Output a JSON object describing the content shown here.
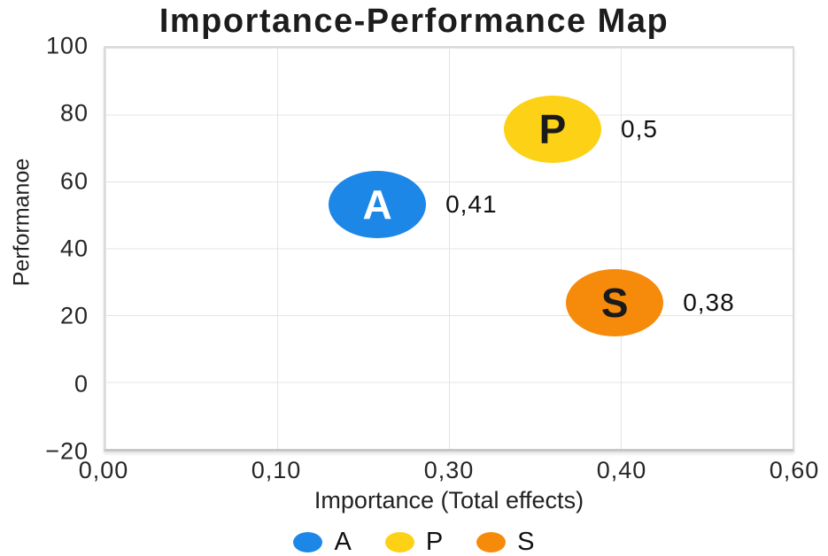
{
  "chart_data": {
    "type": "scatter",
    "subtype": "bubble-ipma",
    "title": "Importance-Performance Map",
    "xlabel": "Importance (Total effects)",
    "ylabel": "Performanoe",
    "x_ticks": {
      "labels": [
        "0,00",
        "0,10",
        "0,30",
        "0,40",
        "0,60"
      ],
      "values": [
        0.0,
        0.1,
        0.3,
        0.4,
        0.6
      ]
    },
    "y_ticks": {
      "labels": [
        "100",
        "80",
        "60",
        "40",
        "20",
        "0",
        "−20"
      ],
      "values": [
        100,
        80,
        60,
        40,
        20,
        0,
        -20
      ]
    },
    "ylim": [
      -20,
      100
    ],
    "xlim": [
      0.0,
      0.6
    ],
    "grid": true,
    "points": [
      {
        "name": "A",
        "x": 0.217,
        "y": 53,
        "value_label": "0,41",
        "color": "#1d87e8",
        "letter_color": "#ffffff"
      },
      {
        "name": "P",
        "x": 0.36,
        "y": 75.5,
        "value_label": "0,5",
        "color": "#fcd116",
        "letter_color": "#1a1a1a"
      },
      {
        "name": "S",
        "x": 0.396,
        "y": 24,
        "value_label": "0,38",
        "color": "#f68b0b",
        "letter_color": "#1a1a1a"
      }
    ],
    "legend": {
      "position": "bottom",
      "entries": [
        {
          "label": "A",
          "color": "#1d87e8"
        },
        {
          "label": "P",
          "color": "#fcd116"
        },
        {
          "label": "S",
          "color": "#f68b0b"
        }
      ]
    }
  }
}
